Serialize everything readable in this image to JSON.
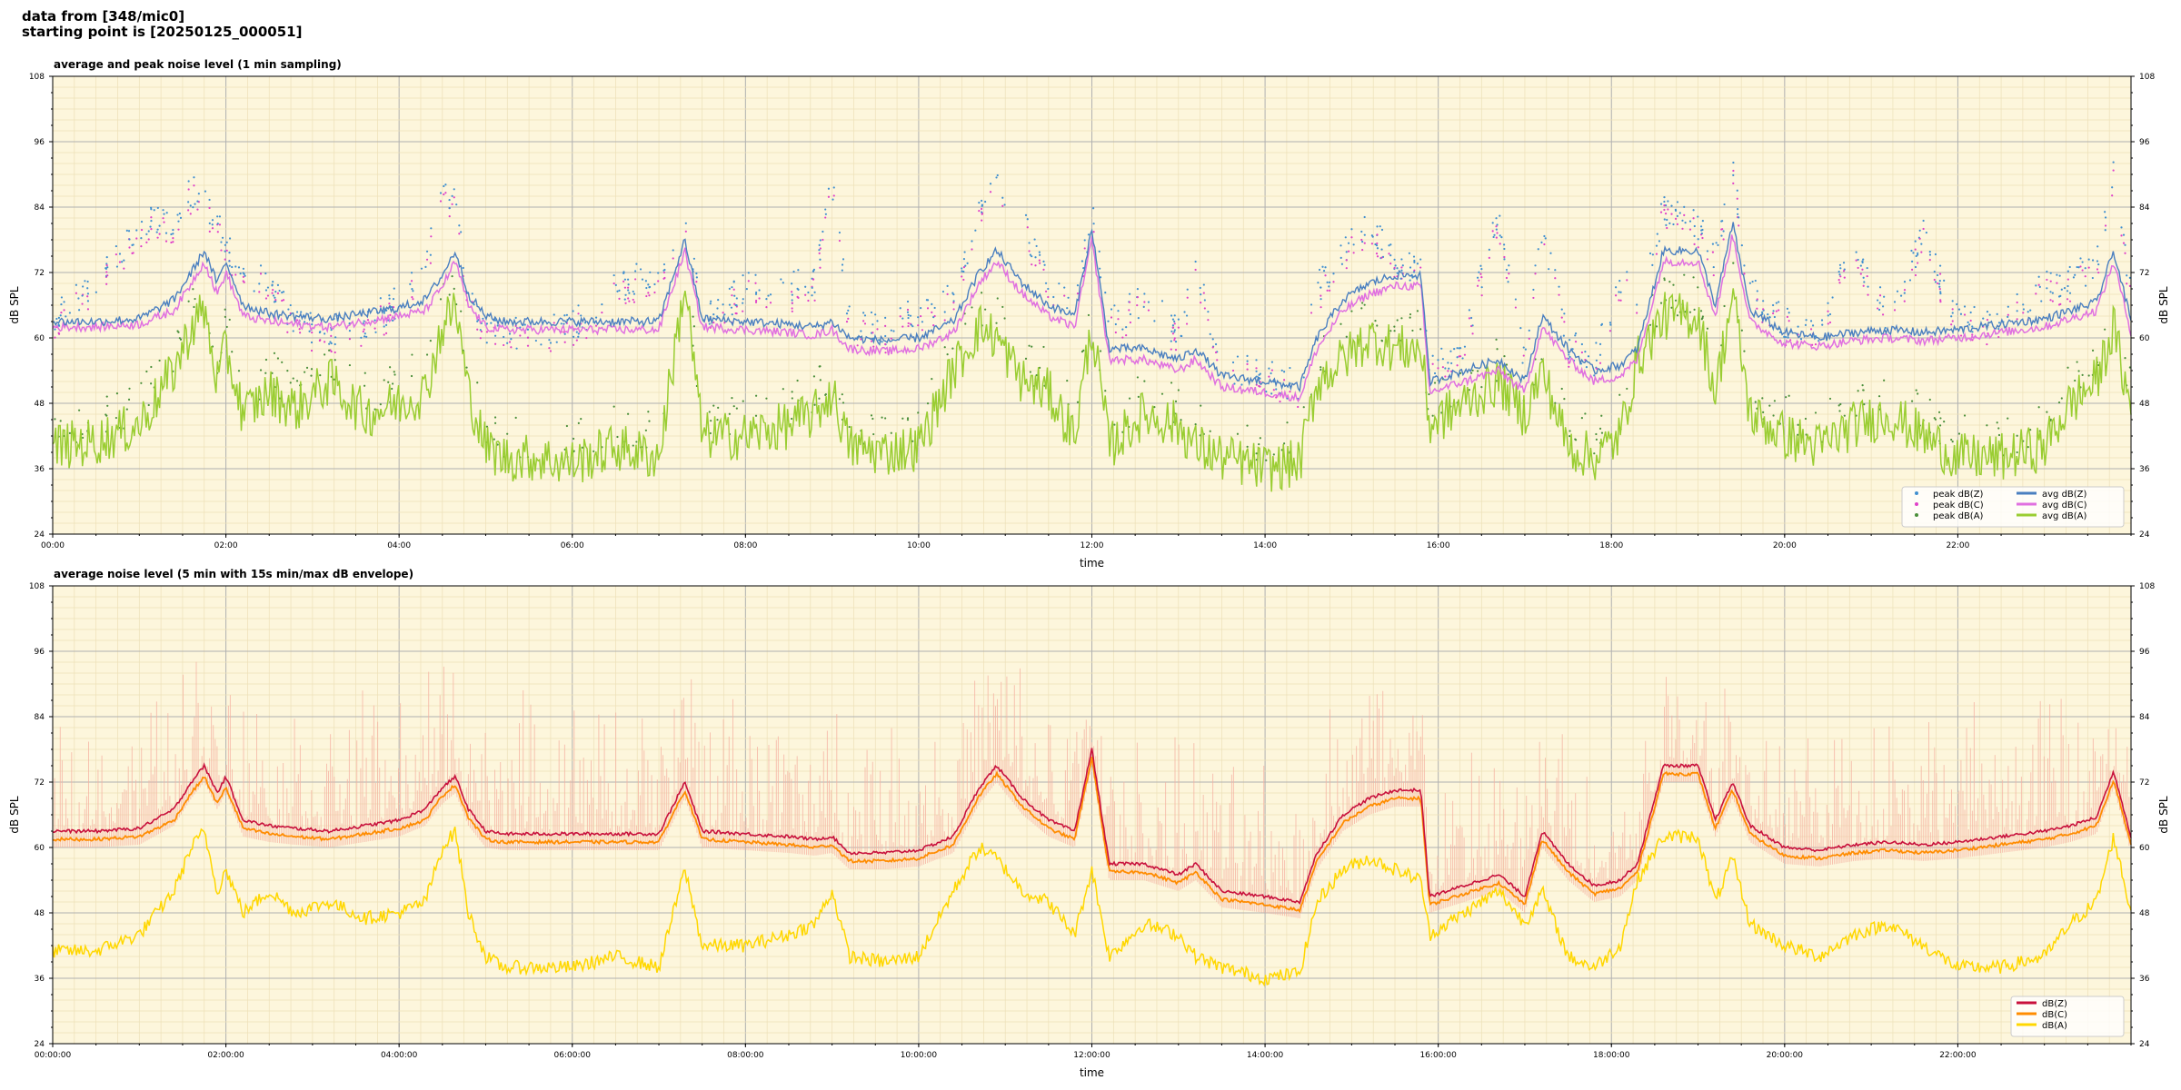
{
  "header": {
    "line1": "data from [348/mic0]",
    "line2": "starting point is [20250125_000051]"
  },
  "colors": {
    "plot_background": "#fdf6dc",
    "peak_z": "#3f8fd0",
    "peak_c": "#e040c8",
    "peak_a": "#4a8f3a",
    "avg_z": "#4a7fc0",
    "avg_c": "#e070e0",
    "avg_a": "#9acd32",
    "db_z": "#c8103c",
    "db_c": "#ff8c00",
    "db_a": "#ffd700",
    "envelope": "#f4b0a0"
  },
  "chart_data": [
    {
      "type": "line",
      "title": "average and peak noise level (1 min sampling)",
      "xlabel": "time",
      "ylabel": "dB SPL",
      "xlim": [
        0,
        24
      ],
      "ylim": [
        24,
        108
      ],
      "yticks": [
        24,
        36,
        48,
        60,
        72,
        84,
        96,
        108
      ],
      "xtick_labels": [
        "00:00",
        "02:00",
        "04:00",
        "06:00",
        "08:00",
        "10:00",
        "12:00",
        "14:00",
        "16:00",
        "18:00",
        "20:00",
        "22:00"
      ],
      "grid": true,
      "legend_position": "lower-right",
      "legend_columns": 2,
      "series": [
        {
          "name": "peak dB(Z)",
          "style": "points",
          "color_key": "peak_z"
        },
        {
          "name": "peak dB(C)",
          "style": "points",
          "color_key": "peak_c"
        },
        {
          "name": "peak dB(A)",
          "style": "points",
          "color_key": "peak_a"
        },
        {
          "name": "avg dB(Z)",
          "style": "line",
          "color_key": "avg_z"
        },
        {
          "name": "avg dB(C)",
          "style": "line",
          "color_key": "avg_c"
        },
        {
          "name": "avg dB(A)",
          "style": "line",
          "color_key": "avg_a"
        }
      ],
      "x_hours": [
        0,
        0.5,
        1.0,
        1.4,
        1.6,
        1.75,
        1.9,
        2.0,
        2.2,
        2.5,
        2.8,
        3.2,
        3.6,
        4.0,
        4.3,
        4.5,
        4.65,
        4.8,
        5.0,
        5.2,
        5.6,
        6.0,
        6.5,
        7.0,
        7.3,
        7.5,
        8.0,
        8.5,
        8.8,
        9.0,
        9.2,
        9.6,
        10.0,
        10.4,
        10.7,
        10.9,
        11.2,
        11.5,
        11.8,
        12.0,
        12.2,
        12.6,
        13.0,
        13.2,
        13.5,
        14.0,
        14.4,
        14.6,
        14.9,
        15.2,
        15.5,
        15.8,
        15.9,
        16.3,
        16.7,
        17.0,
        17.2,
        17.5,
        17.8,
        18.1,
        18.3,
        18.6,
        19.0,
        19.2,
        19.4,
        19.6,
        20.0,
        20.4,
        20.8,
        21.2,
        21.6,
        22.0,
        22.5,
        23.0,
        23.3,
        23.6,
        23.8,
        24.0
      ],
      "avg_z": [
        63,
        63,
        63.5,
        67,
        72,
        76,
        70,
        74,
        66,
        64.5,
        64,
        63.5,
        64.5,
        65.5,
        67,
        71.5,
        76,
        68,
        64,
        63,
        63,
        63,
        63,
        63,
        78,
        63.5,
        63,
        62.5,
        62,
        63,
        60,
        59.5,
        60,
        63,
        72,
        76,
        70,
        66,
        64,
        80,
        58,
        58,
        56,
        58,
        53,
        52,
        51,
        60,
        67,
        70,
        71.5,
        71.5,
        52,
        54,
        56,
        52,
        64,
        58,
        54,
        55,
        58,
        76,
        76,
        66,
        81,
        65,
        61,
        60,
        61,
        61.5,
        61,
        61.5,
        62.5,
        63.5,
        65,
        66.5,
        76,
        63
      ],
      "avg_c": [
        62,
        62,
        62.5,
        65,
        70,
        74,
        68,
        72,
        64,
        63,
        62.5,
        62,
        63,
        64,
        65,
        69.5,
        74,
        66,
        62,
        61.5,
        61.5,
        61.5,
        61.5,
        61.5,
        76,
        62,
        61.5,
        61,
        60.5,
        61.5,
        58,
        57.5,
        58,
        61,
        70,
        74,
        68,
        64,
        62,
        78,
        56,
        56,
        54,
        56,
        51,
        50,
        49,
        58,
        65,
        68,
        69.5,
        69.5,
        50,
        52,
        54,
        50,
        62,
        56,
        52,
        53,
        56,
        74,
        74,
        64,
        79,
        63,
        59,
        58.5,
        59.5,
        60,
        59.5,
        60,
        61,
        62,
        63.5,
        65,
        74,
        61
      ],
      "avg_a": [
        40,
        41,
        44,
        54,
        62,
        65,
        52,
        58,
        46,
        50,
        47,
        52,
        46,
        48,
        50,
        62,
        66,
        50,
        40,
        38,
        38,
        37,
        40,
        38,
        70,
        42,
        42,
        44,
        46,
        50,
        40,
        39,
        40,
        54,
        62,
        60,
        52,
        50,
        42,
        62,
        40,
        46,
        44,
        40,
        38,
        36,
        37,
        52,
        56,
        60,
        58,
        58,
        44,
        48,
        52,
        46,
        54,
        40,
        38,
        42,
        56,
        64,
        64,
        50,
        68,
        46,
        42,
        40,
        44,
        46,
        42,
        38,
        38,
        40,
        48,
        52,
        62,
        46
      ],
      "peak_z": [
        67,
        72,
        84,
        85,
        90,
        88,
        84,
        80,
        76,
        72,
        66,
        64,
        65,
        70,
        76,
        88,
        90,
        70,
        65,
        64,
        64,
        65,
        72,
        76,
        86,
        66,
        72,
        72,
        74,
        92,
        66,
        64,
        68,
        70,
        86,
        92,
        84,
        74,
        70,
        86,
        66,
        70,
        64,
        76,
        58,
        56,
        54,
        72,
        78,
        84,
        76,
        76,
        58,
        62,
        86,
        58,
        84,
        62,
        58,
        74,
        70,
        86,
        84,
        78,
        94,
        72,
        66,
        64,
        80,
        66,
        82,
        66,
        66,
        72,
        74,
        76,
        94,
        70
      ]
    },
    {
      "type": "line",
      "title": "average noise level (5 min with 15s min/max dB envelope)",
      "xlabel": "time",
      "ylabel": "dB SPL",
      "xlim": [
        0,
        24
      ],
      "ylim": [
        24,
        108
      ],
      "yticks": [
        24,
        36,
        48,
        60,
        72,
        84,
        96,
        108
      ],
      "xtick_labels": [
        "00:00:00",
        "02:00:00",
        "04:00:00",
        "06:00:00",
        "08:00:00",
        "10:00:00",
        "12:00:00",
        "14:00:00",
        "16:00:00",
        "18:00:00",
        "20:00:00",
        "22:00:00"
      ],
      "grid": true,
      "legend_position": "lower-right",
      "legend_columns": 1,
      "series": [
        {
          "name": "dB(Z)",
          "style": "line",
          "color_key": "db_z"
        },
        {
          "name": "dB(C)",
          "style": "line",
          "color_key": "db_c"
        },
        {
          "name": "dB(A)",
          "style": "line",
          "color_key": "db_a"
        }
      ],
      "x_hours": [
        0,
        0.5,
        1.0,
        1.4,
        1.6,
        1.75,
        1.9,
        2.0,
        2.2,
        2.5,
        2.8,
        3.2,
        3.6,
        4.0,
        4.3,
        4.5,
        4.65,
        4.8,
        5.0,
        5.2,
        5.6,
        6.0,
        6.5,
        7.0,
        7.3,
        7.5,
        8.0,
        8.5,
        8.8,
        9.0,
        9.2,
        9.6,
        10.0,
        10.4,
        10.7,
        10.9,
        11.2,
        11.5,
        11.8,
        12.0,
        12.2,
        12.6,
        13.0,
        13.2,
        13.5,
        14.0,
        14.4,
        14.6,
        14.9,
        15.2,
        15.5,
        15.8,
        15.9,
        16.3,
        16.7,
        17.0,
        17.2,
        17.5,
        17.8,
        18.1,
        18.3,
        18.6,
        19.0,
        19.2,
        19.4,
        19.6,
        20.0,
        20.4,
        20.8,
        21.2,
        21.6,
        22.0,
        22.5,
        23.0,
        23.3,
        23.6,
        23.8,
        24.0
      ],
      "db_z": [
        63,
        63,
        63.5,
        67,
        72,
        75,
        70,
        73,
        65,
        64,
        63.5,
        63,
        64,
        65,
        67,
        71,
        73,
        67,
        63,
        62.5,
        62.5,
        62.5,
        62.5,
        62.5,
        72,
        63,
        62.5,
        62,
        61.5,
        62,
        59,
        59,
        59.5,
        62,
        71,
        75,
        69,
        65,
        63,
        78,
        57,
        57,
        55,
        57,
        52,
        51,
        50,
        59,
        66,
        69,
        70.5,
        70.5,
        51,
        53,
        55,
        51,
        63,
        57,
        53,
        54,
        57,
        75,
        75,
        65,
        72,
        64,
        60,
        59.5,
        60.5,
        61,
        60.5,
        61,
        62,
        63,
        64,
        65.5,
        74,
        62
      ],
      "db_c": [
        61.5,
        61.5,
        62,
        65,
        70,
        73,
        68,
        71,
        63.5,
        62.5,
        62,
        61.5,
        62.5,
        63.5,
        65,
        69.5,
        71.5,
        65.5,
        61.5,
        61,
        61,
        61,
        61,
        61,
        70.5,
        61.5,
        61,
        60.5,
        60,
        60.5,
        57.5,
        57.5,
        58,
        60.5,
        69.5,
        73.5,
        67.5,
        63.5,
        61.5,
        76.5,
        55.5,
        55.5,
        53.5,
        55.5,
        50.5,
        49.5,
        48.5,
        57.5,
        64.5,
        67.5,
        69,
        69,
        49.5,
        51.5,
        53.5,
        49.5,
        61.5,
        55.5,
        51.5,
        52.5,
        55.5,
        73.5,
        73.5,
        63.5,
        70.5,
        62.5,
        58.5,
        58,
        59,
        59.5,
        59,
        59.5,
        60.5,
        61.5,
        62.5,
        64,
        72.5,
        60.5
      ],
      "db_a": [
        41,
        41,
        44,
        52,
        60,
        63,
        52,
        56,
        48,
        52,
        48,
        50,
        47,
        48,
        50,
        60,
        63,
        48,
        40,
        38,
        38,
        38,
        40,
        38,
        56,
        42,
        42,
        44,
        46,
        52,
        40,
        39,
        40,
        52,
        60,
        58,
        52,
        50,
        44,
        56,
        40,
        46,
        44,
        40,
        38,
        36,
        37,
        50,
        56,
        58,
        56,
        54,
        44,
        48,
        52,
        46,
        52,
        40,
        38,
        42,
        54,
        62,
        62,
        50,
        58,
        46,
        42,
        40,
        44,
        46,
        42,
        38,
        38,
        40,
        46,
        50,
        62,
        48
      ]
    }
  ]
}
